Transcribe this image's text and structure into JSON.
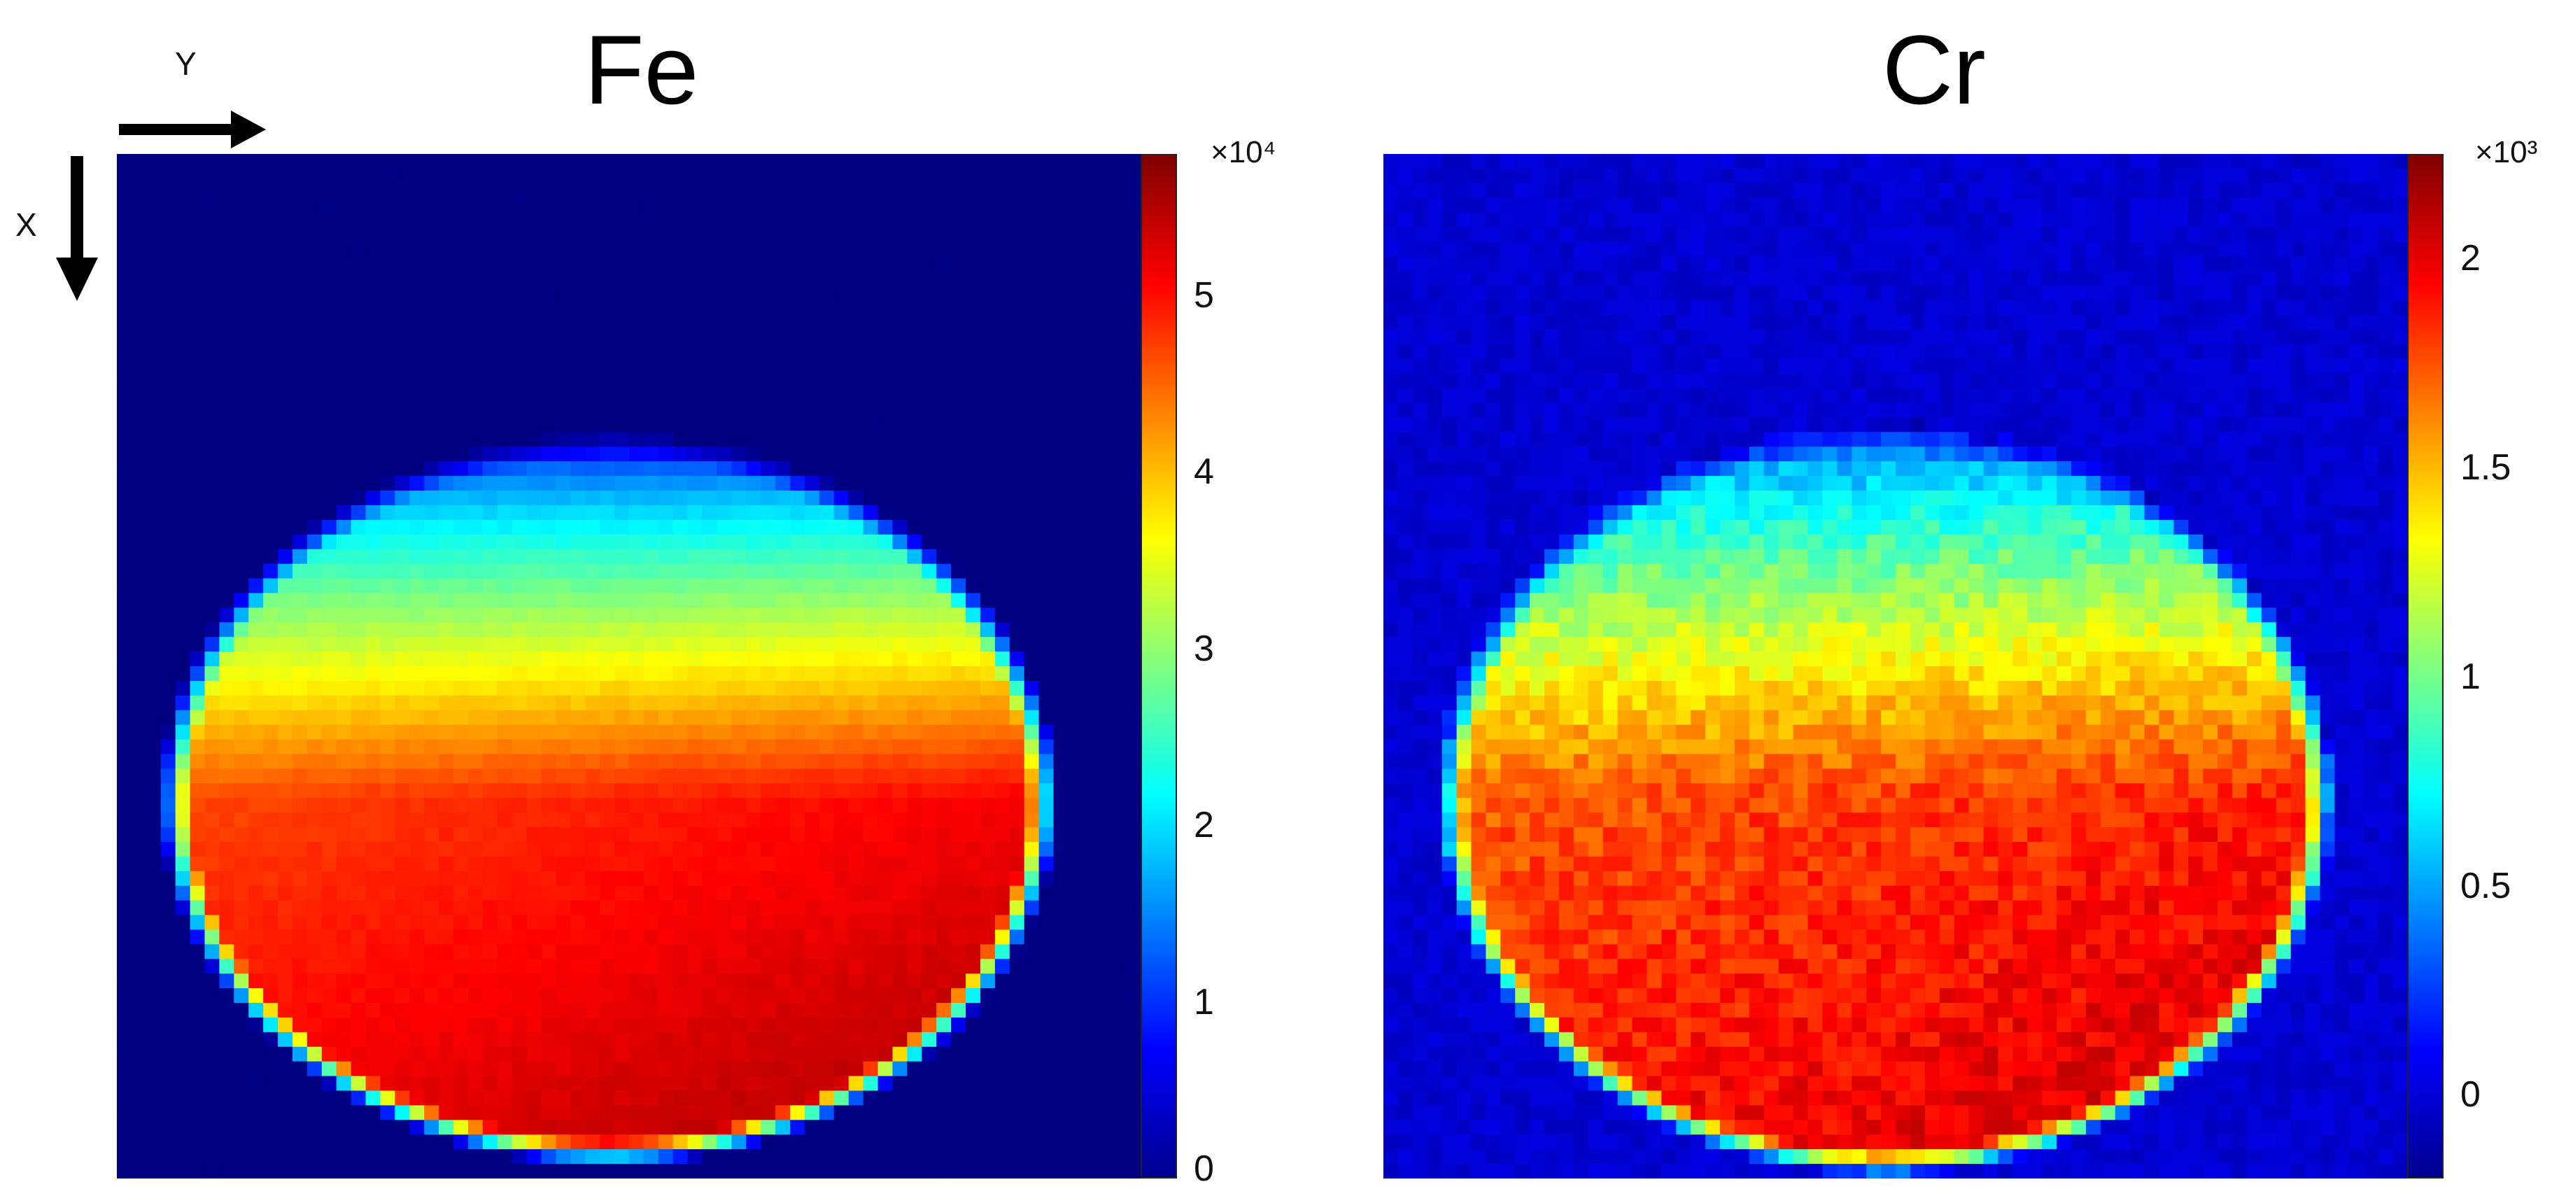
{
  "chart_data": [
    {
      "type": "heatmap",
      "title": "Fe",
      "xlabel": "",
      "ylabel": "",
      "colormap": "jet",
      "colorbar": {
        "exponent_label": "×10⁴",
        "ticks": [
          "0",
          "1",
          "2",
          "3",
          "4",
          "5"
        ],
        "range": [
          0,
          5.8
        ]
      },
      "grid": false
    },
    {
      "type": "heatmap",
      "title": "Cr",
      "xlabel": "",
      "ylabel": "",
      "colormap": "jet",
      "colorbar": {
        "exponent_label": "×10³",
        "ticks": [
          "0",
          "0.5",
          "1",
          "1.5",
          "2"
        ],
        "range": [
          -0.2,
          2.25
        ]
      },
      "grid": false
    }
  ],
  "axes_indicator": {
    "y_label": "Y",
    "x_label": "X"
  }
}
